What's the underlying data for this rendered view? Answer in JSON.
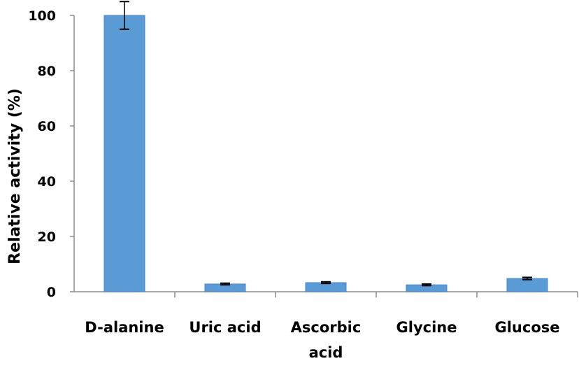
{
  "chart_data": {
    "type": "bar",
    "title": "",
    "xlabel": "",
    "ylabel": "Relative activity (%)",
    "ylim": [
      0,
      100
    ],
    "yticks": [
      0,
      20,
      40,
      60,
      80,
      100
    ],
    "grid": false,
    "legend": "none",
    "bar_color": "#5b9bd5",
    "bar_edge_color": "#4a86c6",
    "categories": [
      {
        "lines": [
          "D-alanine"
        ]
      },
      {
        "lines": [
          "Uric acid"
        ]
      },
      {
        "lines": [
          "Ascorbic",
          "acid"
        ]
      },
      {
        "lines": [
          "Glycine"
        ]
      },
      {
        "lines": [
          "Glucose"
        ]
      }
    ],
    "values": [
      100,
      2.8,
      3.3,
      2.5,
      4.8
    ],
    "errors": [
      5,
      0.3,
      0.3,
      0.3,
      0.4
    ]
  }
}
